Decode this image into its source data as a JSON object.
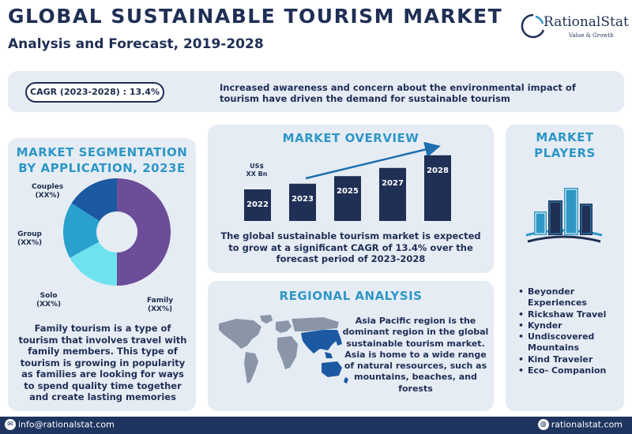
{
  "header": {
    "title": "GLOBAL SUSTAINABLE TOURISM MARKET",
    "subtitle": "Analysis and Forecast, 2019-2028"
  },
  "logo": {
    "name": "RationalStat",
    "tagline": "Value & Growth",
    "icon": "rationalstat-logo-icon"
  },
  "cagr": {
    "pill": "CAGR (2023-2028) : 13.4%",
    "text": "Increased awareness and concern about the environmental impact of tourism have driven the demand for sustainable tourism"
  },
  "segmentation": {
    "title_line1": "MARKET SEGMENTATION",
    "title_line2": "BY  APPLICATION, 2023E",
    "labels": {
      "couples": {
        "name": "Couples",
        "value": "(XX%)"
      },
      "group": {
        "name": "Group",
        "value": "(XX%)"
      },
      "solo": {
        "name": "Solo",
        "value": "(XX%)"
      },
      "family": {
        "name": "Family",
        "value": "(XX%)"
      }
    },
    "description": "Family tourism is a type of tourism that involves travel with family members. This type of tourism is growing in popularity as families are looking for ways to spend quality time together and create lasting memories"
  },
  "chart_data": [
    {
      "type": "pie",
      "title": "MARKET SEGMENTATION BY  APPLICATION, 2023E",
      "categories": [
        "Family",
        "Solo",
        "Group",
        "Couples"
      ],
      "values": [
        50,
        17,
        17,
        16
      ],
      "colors": [
        "#6b4d98",
        "#6ee3ef",
        "#2aa0cd",
        "#1b5aa2"
      ]
    },
    {
      "type": "bar",
      "title": "MARKET OVERVIEW",
      "categories": [
        "2022",
        "2023",
        "2025",
        "2027",
        "2028"
      ],
      "values": [
        1.0,
        1.18,
        1.42,
        1.68,
        2.08
      ],
      "ylim": [
        0,
        2.2
      ],
      "annotations": [
        "US$ XX Bn"
      ],
      "color": "#1f2f55"
    }
  ],
  "overview": {
    "title": "MARKET OVERVIEW",
    "unit_line1": "US$",
    "unit_line2": "XX Bn",
    "description": "The  global sustainable tourism market is expected to grow at a significant CAGR of 13.4% over the forecast period of 2023-2028"
  },
  "regional": {
    "title": "REGIONAL ANALYSIS",
    "map_icon": "world-map-icon",
    "description": "Asia Pacific region is the dominant region in the global sustainable tourism market. Asia is home to a wide range of natural resources, such as mountains, beaches, and forests",
    "highlight_color": "#1b5aa2"
  },
  "players": {
    "title_line1": "MARKET",
    "title_line2": "PLAYERS",
    "icon": "city-buildings-icon",
    "items": [
      "Beyonder Experiences",
      "Rickshaw Travel",
      "Kynder",
      "Undiscovered Mountains",
      "Kind Traveler",
      "Eco- Companion"
    ]
  },
  "footer": {
    "email": "info@rationalstat.com",
    "website": "rationalstat.com",
    "email_icon": "envelope-icon",
    "web_icon": "globe-icon"
  },
  "colors": {
    "navy": "#1f2f55",
    "accent": "#2e97c6",
    "panel": "#e6ecf4",
    "footer": "#1f3560"
  }
}
